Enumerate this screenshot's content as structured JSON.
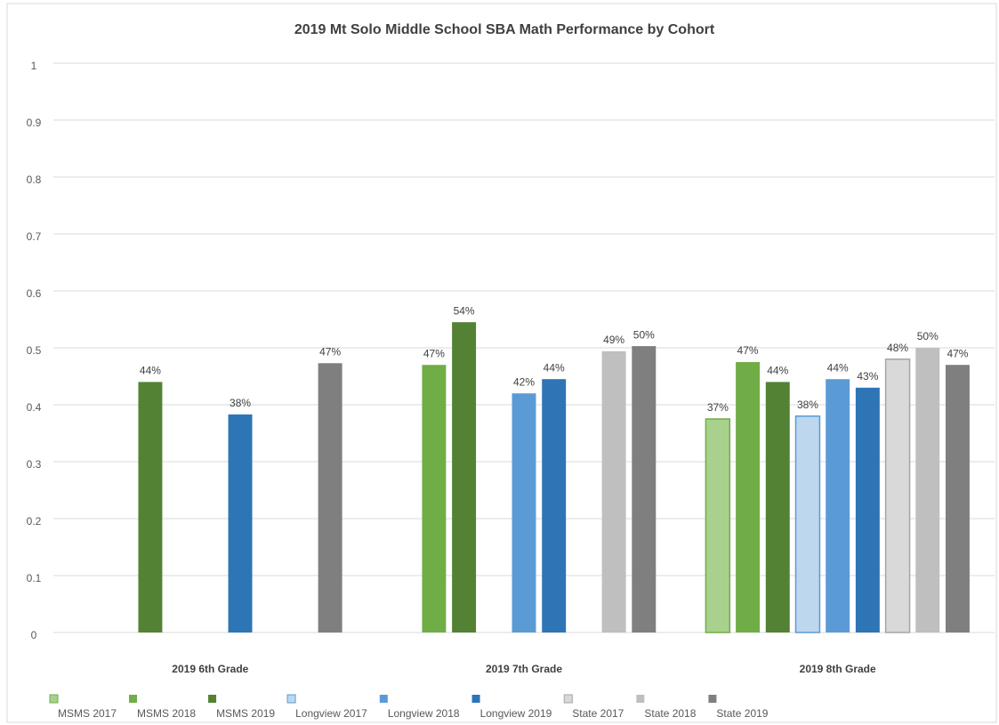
{
  "chart_data": {
    "type": "bar",
    "title": "2019 Mt Solo Middle School SBA Math Performance by Cohort",
    "categories": [
      "2019 6th Grade",
      "2019 7th Grade",
      "2019 8th Grade"
    ],
    "ylim": [
      0,
      1
    ],
    "yticks": [
      0,
      0.1,
      0.2,
      0.3,
      0.4,
      0.5,
      0.6,
      0.7,
      0.8,
      0.9,
      1
    ],
    "grid": true,
    "legend": "bottom",
    "series": [
      {
        "name": "MSMS 2017",
        "color": "#a9d18e",
        "edgecolor": "#70ad47",
        "values": [
          null,
          null,
          0.375
        ],
        "value_labels": [
          null,
          null,
          "37%"
        ]
      },
      {
        "name": "MSMS 2018",
        "color": "#70ad47",
        "values": [
          null,
          0.47,
          0.475
        ],
        "value_labels": [
          null,
          "47%",
          "47%"
        ]
      },
      {
        "name": "MSMS 2019",
        "color": "#548235",
        "values": [
          0.44,
          0.545,
          0.44
        ],
        "value_labels": [
          "44%",
          "54%",
          "44%"
        ]
      },
      {
        "name": "Longview 2017",
        "color": "#bdd7ee",
        "edgecolor": "#5b9bd5",
        "values": [
          null,
          null,
          0.38
        ],
        "value_labels": [
          null,
          null,
          "38%"
        ]
      },
      {
        "name": "Longview 2018",
        "color": "#5b9bd5",
        "values": [
          null,
          0.42,
          0.445
        ],
        "value_labels": [
          null,
          "42%",
          "44%"
        ]
      },
      {
        "name": "Longview 2019",
        "color": "#2e75b6",
        "values": [
          0.383,
          0.445,
          0.43
        ],
        "value_labels": [
          "38%",
          "44%",
          "43%"
        ]
      },
      {
        "name": "State 2017",
        "color": "#d9d9d9",
        "edgecolor": "#a5a5a5",
        "values": [
          null,
          null,
          0.48
        ],
        "value_labels": [
          null,
          null,
          "48%"
        ]
      },
      {
        "name": "State 2018",
        "color": "#bfbfbf",
        "values": [
          null,
          0.494,
          0.5
        ],
        "value_labels": [
          null,
          "49%",
          "50%"
        ]
      },
      {
        "name": "State 2019",
        "color": "#7f7f7f",
        "values": [
          0.473,
          0.503,
          0.47
        ],
        "value_labels": [
          "47%",
          "50%",
          "47%"
        ]
      }
    ]
  }
}
